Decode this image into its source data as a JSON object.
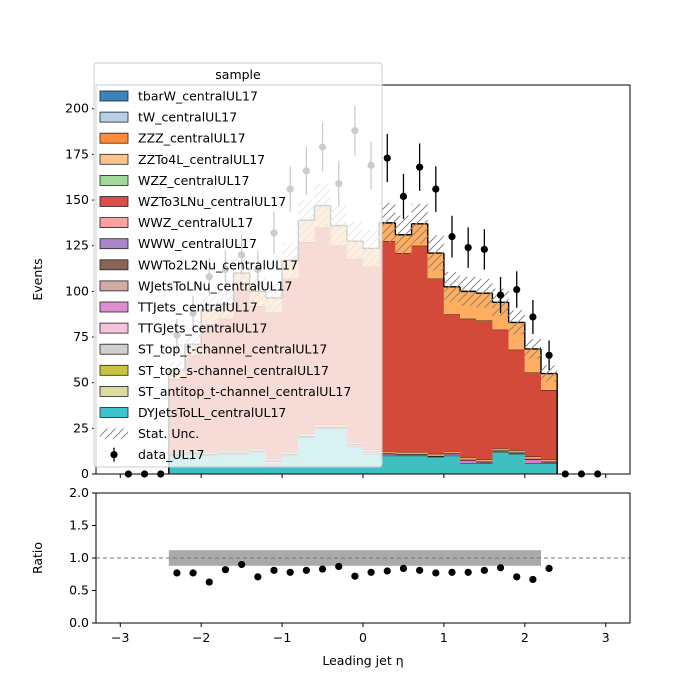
{
  "chart_data": [
    {
      "type": "histogram",
      "stacked": true,
      "xlabel": "Leading jet  η",
      "ylabel": "Events",
      "xlim": [
        -3.3,
        3.3
      ],
      "ylim": [
        0,
        213
      ],
      "xticks": [
        -3,
        -2,
        -1,
        0,
        1,
        2,
        3
      ],
      "yticks": [
        0,
        25,
        50,
        75,
        100,
        125,
        150,
        175,
        200
      ],
      "bin_edges": [
        -3.0,
        -2.8,
        -2.6,
        -2.4,
        -2.2,
        -2.0,
        -1.8,
        -1.6,
        -1.4,
        -1.2,
        -1.0,
        -0.8,
        -0.6,
        -0.4,
        -0.2,
        0.0,
        0.2,
        0.4,
        0.6,
        0.8,
        1.0,
        1.2,
        1.4,
        1.6,
        1.8,
        2.0,
        2.2,
        2.4,
        2.6,
        2.8,
        3.0
      ],
      "legend": {
        "title": "sample",
        "placement": "upper-left",
        "entries": [
          "tbarW_centralUL17",
          "tW_centralUL17",
          "ZZZ_centralUL17",
          "ZZTo4L_centralUL17",
          "WZZ_centralUL17",
          "WZTo3LNu_centralUL17",
          "WWZ_centralUL17",
          "WWW_centralUL17",
          "WWTo2L2Nu_centralUL17",
          "WJetsToLNu_centralUL17",
          "TTJets_centralUL17",
          "TTGJets_centralUL17",
          "ST_top_t-channel_centralUL17",
          "ST_top_s-channel_centralUL17",
          "ST_antitop_t-channel_centralUL17",
          "DYJetsToLL_centralUL17",
          "Stat. Unc.",
          "data_UL17"
        ]
      },
      "series": [
        {
          "name": "DYJetsToLL_centralUL17",
          "color": "#3fbfbf",
          "values": [
            0,
            0,
            0,
            10,
            11,
            10,
            11,
            11,
            12,
            5,
            10,
            20,
            25,
            25,
            15,
            11,
            10,
            10,
            10,
            9,
            10,
            6,
            6,
            12,
            11,
            6,
            6,
            0,
            0,
            0
          ]
        },
        {
          "name": "TTJets_centralUL17",
          "color": "#d37fc7",
          "values": [
            0,
            0,
            0,
            0.5,
            0.5,
            0.5,
            0.5,
            0.5,
            0.5,
            2,
            0.5,
            0.5,
            0.5,
            0.5,
            1,
            1,
            1,
            0.5,
            0.5,
            0.5,
            1,
            1.5,
            0.5,
            0.5,
            0.5,
            2,
            0.5,
            0,
            0,
            0
          ]
        },
        {
          "name": "WWTo2L2Nu_centralUL17",
          "color": "#8c564b",
          "values": [
            0,
            0,
            0,
            0.3,
            0.3,
            0.3,
            0.3,
            0.3,
            0.3,
            0.3,
            0.3,
            0.3,
            0.3,
            0.3,
            0.3,
            0.3,
            0.3,
            0.3,
            0.3,
            0.3,
            0.3,
            0.3,
            0.3,
            0.3,
            0.3,
            0.3,
            0.3,
            0,
            0,
            0
          ]
        },
        {
          "name": "ZZTo4L_centralUL17",
          "color": "#e2a660",
          "values": [
            0,
            0,
            0,
            1.2,
            1.2,
            1.2,
            1.2,
            1.2,
            1.2,
            1.2,
            1.2,
            1.2,
            1.2,
            1.2,
            1.2,
            1.2,
            1.2,
            1.2,
            1.2,
            1.2,
            1.2,
            1.2,
            1.2,
            1.2,
            1.2,
            1.2,
            1.2,
            0,
            0,
            0
          ]
        },
        {
          "name": "WZTo3LNu_centralUL17",
          "color": "#d44a3a",
          "values": [
            0,
            0,
            0,
            40,
            52,
            70,
            72,
            88,
            78,
            80,
            95,
            105,
            108,
            98,
            100,
            100,
            115,
            109,
            113,
            96,
            75,
            76,
            76,
            65,
            55,
            46,
            38,
            0,
            0,
            0
          ]
        },
        {
          "name": "ZZZ_centralUL17",
          "color": "#fdae61",
          "values": [
            0,
            0,
            0,
            5,
            6,
            8,
            8,
            9,
            8,
            8,
            10,
            12,
            12,
            11,
            10,
            10,
            10,
            10,
            12,
            14,
            15,
            15,
            15,
            15,
            15,
            13,
            9,
            0,
            0,
            0
          ]
        }
      ],
      "stat_unc": {
        "label": "Stat. Unc.",
        "relative": 0.08
      },
      "data": {
        "name": "data_UL17",
        "x": [
          -2.9,
          -2.7,
          -2.5,
          -2.3,
          -2.1,
          -1.9,
          -1.7,
          -1.5,
          -1.3,
          -1.1,
          -0.9,
          -0.7,
          -0.5,
          -0.3,
          -0.1,
          0.1,
          0.3,
          0.5,
          0.7,
          0.9,
          1.1,
          1.3,
          1.5,
          1.7,
          1.9,
          2.1,
          2.3,
          2.5,
          2.7,
          2.9
        ],
        "y": [
          0,
          0,
          0,
          76,
          88,
          108,
          112,
          120,
          112,
          132,
          156,
          166,
          179,
          159,
          188,
          169,
          173,
          152,
          168,
          156,
          130,
          124,
          123,
          98,
          101,
          86,
          65,
          0,
          0,
          0
        ],
        "yerr": [
          0,
          0,
          0,
          9,
          9.5,
          10.5,
          10.5,
          11,
          10.5,
          11.5,
          12.5,
          13,
          13.5,
          12.5,
          13.7,
          13,
          13.2,
          12.3,
          13,
          12.5,
          11.4,
          11.1,
          11.1,
          9.9,
          10,
          9.3,
          8.1,
          0,
          0,
          0
        ]
      }
    },
    {
      "type": "scatter",
      "xlabel": "Leading jet  η",
      "ylabel": "Ratio",
      "xlim": [
        -3.3,
        3.3
      ],
      "ylim": [
        0,
        2
      ],
      "xticks": [
        -3,
        -2,
        -1,
        0,
        1,
        2,
        3
      ],
      "yticks": [
        0.0,
        0.5,
        1.0,
        1.5,
        2.0
      ],
      "reference_line": 1.0,
      "unc_band": {
        "x_range": [
          -2.4,
          2.2
        ],
        "half_width": 0.12
      },
      "x": [
        -2.3,
        -2.1,
        -1.9,
        -1.7,
        -1.5,
        -1.3,
        -1.1,
        -0.9,
        -0.7,
        -0.5,
        -0.3,
        -0.1,
        0.1,
        0.3,
        0.5,
        0.7,
        0.9,
        1.1,
        1.3,
        1.5,
        1.7,
        1.9,
        2.1,
        2.3
      ],
      "y": [
        0.77,
        0.77,
        0.63,
        0.82,
        0.9,
        0.71,
        0.81,
        0.78,
        0.81,
        0.83,
        0.87,
        0.72,
        0.78,
        0.8,
        0.84,
        0.81,
        0.77,
        0.78,
        0.78,
        0.81,
        0.85,
        0.71,
        0.67,
        0.84
      ]
    }
  ]
}
